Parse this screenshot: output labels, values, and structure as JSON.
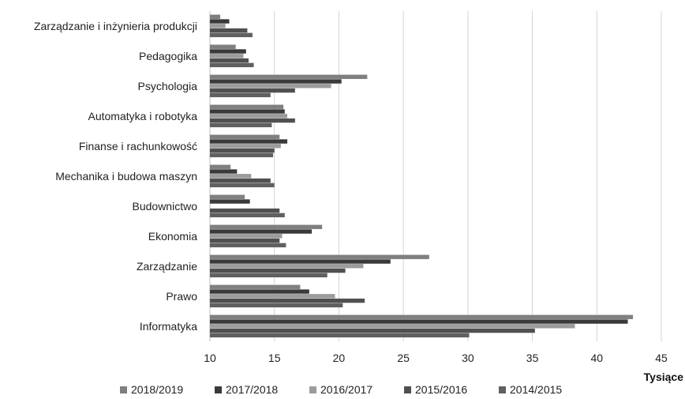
{
  "chart_data": {
    "type": "bar",
    "orientation": "horizontal",
    "categories": [
      "Zarządzanie i inżynieria produkcji",
      "Pedagogika",
      "Psychologia",
      "Automatyka i robotyka",
      "Finanse i rachunkowość",
      "Mechanika i budowa maszyn",
      "Budownictwo",
      "Ekonomia",
      "Zarządzanie",
      "Prawo",
      "Informatyka"
    ],
    "series": [
      {
        "name": "2018/2019",
        "color": "#7f7f7f",
        "values": [
          10.8,
          12.0,
          22.2,
          15.7,
          15.4,
          11.6,
          12.7,
          18.7,
          27.0,
          17.0,
          42.8
        ]
      },
      {
        "name": "2017/2018",
        "color": "#3a3a3a",
        "values": [
          11.5,
          12.8,
          20.2,
          15.8,
          16.0,
          12.1,
          13.1,
          17.9,
          24.0,
          17.7,
          42.4
        ]
      },
      {
        "name": "2016/2017",
        "color": "#9c9c9c",
        "values": [
          11.2,
          12.6,
          19.4,
          16.0,
          15.5,
          13.2,
          10.0,
          15.6,
          21.9,
          19.7,
          38.3
        ]
      },
      {
        "name": "2015/2016",
        "color": "#505050",
        "values": [
          12.9,
          13.0,
          16.6,
          16.6,
          15.0,
          14.7,
          15.4,
          15.4,
          20.5,
          22.0,
          35.2
        ]
      },
      {
        "name": "2014/2015",
        "color": "#606060",
        "values": [
          13.3,
          13.4,
          14.7,
          14.8,
          14.9,
          15.0,
          15.8,
          15.9,
          19.1,
          20.3,
          30.1
        ]
      }
    ],
    "xlim": [
      10,
      45
    ],
    "xticks": [
      10,
      15,
      20,
      25,
      30,
      35,
      40,
      45
    ],
    "xlabel": "Tysiące",
    "ylabel": "",
    "title": "",
    "grid": "vertical",
    "legend_position": "bottom"
  }
}
